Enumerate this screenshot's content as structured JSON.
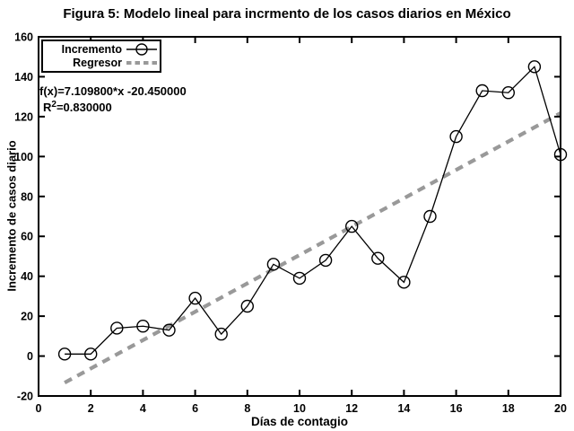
{
  "title": "Figura 5: Modelo lineal para incrmento de los casos diarios en México",
  "axes": {
    "xlabel": "Días de contagio",
    "ylabel": "Incremento de casos diario"
  },
  "legend": {
    "items": [
      {
        "label": "Incremento",
        "marker": "line-circle"
      },
      {
        "label": "Regresor",
        "marker": "dashed-line"
      }
    ]
  },
  "annotation": {
    "fit_line": "f(x)=7.109800*x -20.450000",
    "r2_base": "R",
    "r2_sup": "2",
    "r2_rest": "=0.830000"
  },
  "colors": {
    "ink": "#000000",
    "regressor": "#999999",
    "bg": "#ffffff"
  },
  "chart_data": {
    "type": "line",
    "title": "Figura 5: Modelo lineal para incrmento de los casos diarios en México",
    "xlabel": "Días de contagio",
    "ylabel": "Incremento de casos diario",
    "xlim": [
      0,
      20
    ],
    "ylim": [
      -20,
      160
    ],
    "xticks": [
      0,
      2,
      4,
      6,
      8,
      10,
      12,
      14,
      16,
      18,
      20
    ],
    "yticks": [
      -20,
      0,
      20,
      40,
      60,
      80,
      100,
      120,
      140,
      160
    ],
    "grid": false,
    "legend_position": "top-left",
    "series": [
      {
        "name": "Incremento",
        "style": "solid-line-open-circle-markers",
        "color": "#000000",
        "x": [
          1,
          2,
          3,
          4,
          5,
          6,
          7,
          8,
          9,
          10,
          11,
          12,
          13,
          14,
          15,
          16,
          17,
          18,
          19,
          20
        ],
        "y": [
          1,
          1,
          14,
          15,
          13,
          29,
          11,
          25,
          46,
          39,
          48,
          65,
          49,
          37,
          70,
          110,
          133,
          132,
          145,
          101
        ]
      },
      {
        "name": "Regresor",
        "style": "dashed-line",
        "color": "#999999",
        "fit": {
          "slope": 7.1098,
          "intercept": -20.45,
          "r_squared": 0.83
        },
        "x_range": [
          1,
          20
        ]
      }
    ],
    "annotations": [
      "f(x)=7.109800*x -20.450000",
      "R2=0.830000"
    ]
  }
}
